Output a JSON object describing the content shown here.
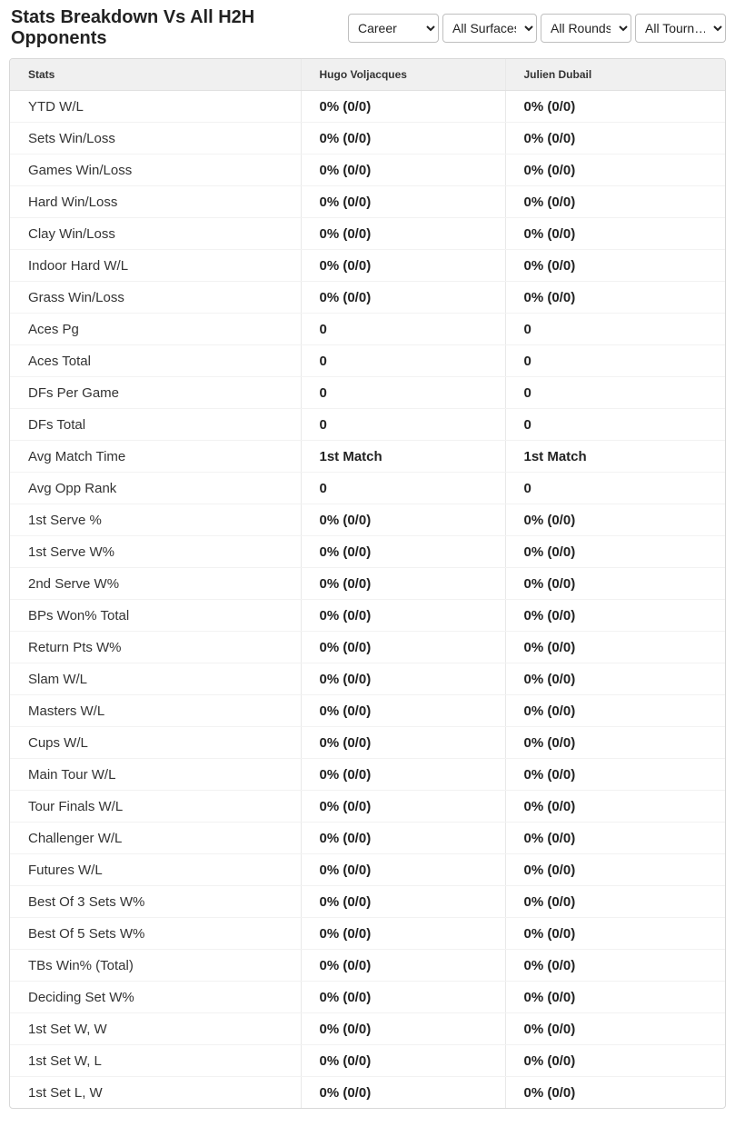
{
  "title": "Stats Breakdown Vs All H2H Opponents",
  "filters": {
    "career": {
      "selected": "Career",
      "options": [
        "Career"
      ]
    },
    "surfaces": {
      "selected": "All Surfaces",
      "options": [
        "All Surfaces"
      ]
    },
    "rounds": {
      "selected": "All Rounds",
      "options": [
        "All Rounds"
      ]
    },
    "tourns": {
      "selected": "All Tourn…",
      "options": [
        "All Tourn…"
      ]
    }
  },
  "columns": {
    "stats_label": "Stats",
    "player1": "Hugo Voljacques",
    "player2": "Julien Dubail"
  },
  "rows": [
    {
      "stat": "YTD W/L",
      "p1": "0% (0/0)",
      "p2": "0% (0/0)"
    },
    {
      "stat": "Sets Win/Loss",
      "p1": "0% (0/0)",
      "p2": "0% (0/0)"
    },
    {
      "stat": "Games Win/Loss",
      "p1": "0% (0/0)",
      "p2": "0% (0/0)"
    },
    {
      "stat": "Hard Win/Loss",
      "p1": "0% (0/0)",
      "p2": "0% (0/0)"
    },
    {
      "stat": "Clay Win/Loss",
      "p1": "0% (0/0)",
      "p2": "0% (0/0)"
    },
    {
      "stat": "Indoor Hard W/L",
      "p1": "0% (0/0)",
      "p2": "0% (0/0)"
    },
    {
      "stat": "Grass Win/Loss",
      "p1": "0% (0/0)",
      "p2": "0% (0/0)"
    },
    {
      "stat": "Aces Pg",
      "p1": "0",
      "p2": "0"
    },
    {
      "stat": "Aces Total",
      "p1": "0",
      "p2": "0"
    },
    {
      "stat": "DFs Per Game",
      "p1": "0",
      "p2": "0"
    },
    {
      "stat": "DFs Total",
      "p1": "0",
      "p2": "0"
    },
    {
      "stat": "Avg Match Time",
      "p1": "1st Match",
      "p2": "1st Match"
    },
    {
      "stat": "Avg Opp Rank",
      "p1": "0",
      "p2": "0"
    },
    {
      "stat": "1st Serve %",
      "p1": "0% (0/0)",
      "p2": "0% (0/0)"
    },
    {
      "stat": "1st Serve W%",
      "p1": "0% (0/0)",
      "p2": "0% (0/0)"
    },
    {
      "stat": "2nd Serve W%",
      "p1": "0% (0/0)",
      "p2": "0% (0/0)"
    },
    {
      "stat": "BPs Won% Total",
      "p1": "0% (0/0)",
      "p2": "0% (0/0)"
    },
    {
      "stat": "Return Pts W%",
      "p1": "0% (0/0)",
      "p2": "0% (0/0)"
    },
    {
      "stat": "Slam W/L",
      "p1": "0% (0/0)",
      "p2": "0% (0/0)"
    },
    {
      "stat": "Masters W/L",
      "p1": "0% (0/0)",
      "p2": "0% (0/0)"
    },
    {
      "stat": "Cups W/L",
      "p1": "0% (0/0)",
      "p2": "0% (0/0)"
    },
    {
      "stat": "Main Tour W/L",
      "p1": "0% (0/0)",
      "p2": "0% (0/0)"
    },
    {
      "stat": "Tour Finals W/L",
      "p1": "0% (0/0)",
      "p2": "0% (0/0)"
    },
    {
      "stat": "Challenger W/L",
      "p1": "0% (0/0)",
      "p2": "0% (0/0)"
    },
    {
      "stat": "Futures W/L",
      "p1": "0% (0/0)",
      "p2": "0% (0/0)"
    },
    {
      "stat": "Best Of 3 Sets W%",
      "p1": "0% (0/0)",
      "p2": "0% (0/0)"
    },
    {
      "stat": "Best Of 5 Sets W%",
      "p1": "0% (0/0)",
      "p2": "0% (0/0)"
    },
    {
      "stat": "TBs Win% (Total)",
      "p1": "0% (0/0)",
      "p2": "0% (0/0)"
    },
    {
      "stat": "Deciding Set W%",
      "p1": "0% (0/0)",
      "p2": "0% (0/0)"
    },
    {
      "stat": "1st Set W, W",
      "p1": "0% (0/0)",
      "p2": "0% (0/0)"
    },
    {
      "stat": "1st Set W, L",
      "p1": "0% (0/0)",
      "p2": "0% (0/0)"
    },
    {
      "stat": "1st Set L, W",
      "p1": "0% (0/0)",
      "p2": "0% (0/0)"
    }
  ],
  "style": {
    "page_bg": "#ffffff",
    "header_bg": "#f0f0f0",
    "border_color": "#d8d8d8",
    "row_border": "#f2f2f2",
    "col_border": "#e8e8e8",
    "title_fontsize": 20,
    "header_fontsize": 12,
    "cell_fontsize": 15,
    "value_weight": 700
  }
}
